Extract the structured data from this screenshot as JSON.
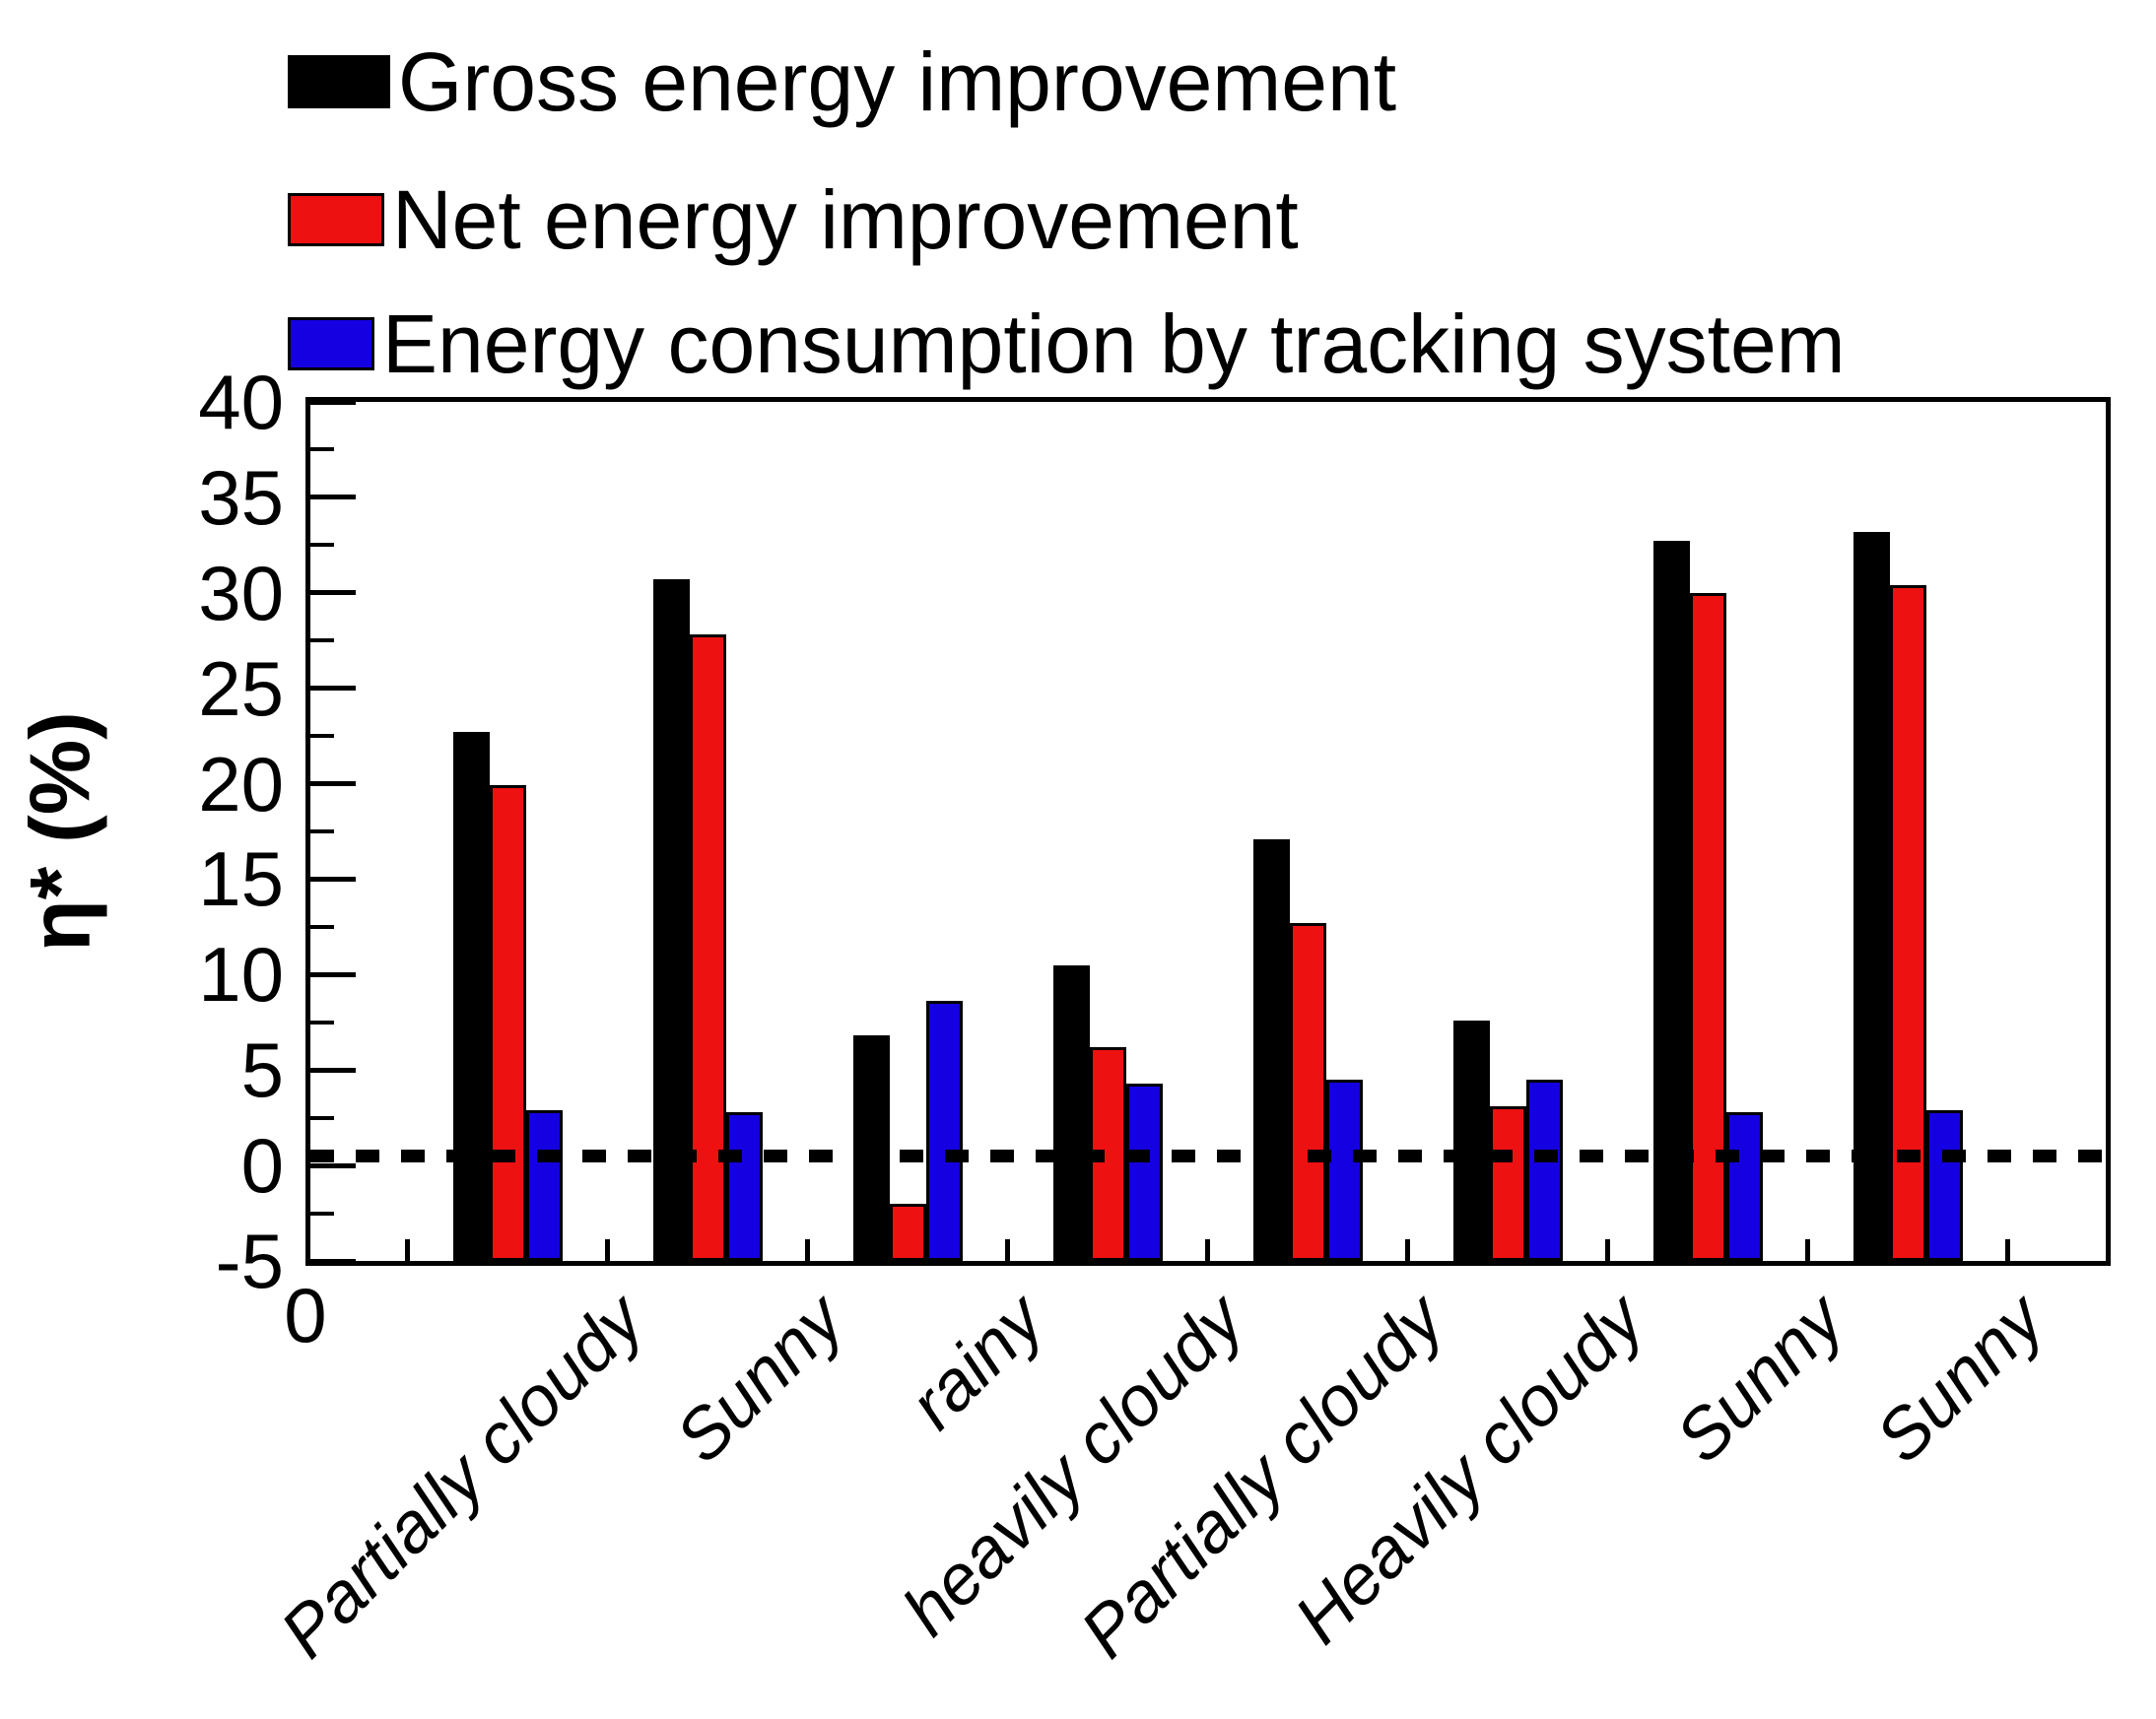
{
  "figure": {
    "background": "#ffffff"
  },
  "legend": {
    "position": "top-left"
  },
  "axes": {
    "y_title": "η* (%)",
    "y_ticks": [
      40,
      35,
      30,
      25,
      20,
      15,
      10,
      5,
      0,
      -5
    ],
    "origin_label": "0"
  },
  "chart_data": {
    "type": "bar",
    "title": "",
    "xlabel": "",
    "ylabel": "η* (%)",
    "ylim": [
      -5,
      40
    ],
    "y_major_step": 5,
    "y_minor_step": 2.5,
    "grid": false,
    "legend_position": "top-left",
    "bar_baseline": -5,
    "reference_line_y": 0.5,
    "reference_line_style": "dotted",
    "categories": [
      "Partially cloudy",
      "Sunny",
      "rainy",
      "heavily cloudy",
      "Partially cloudy",
      "Heavily cloudy",
      "Sunny",
      "Sunny"
    ],
    "series": [
      {
        "name": "Gross energy improvement",
        "key": "gross",
        "color": "#000000",
        "values": [
          22.7,
          30.7,
          6.8,
          10.5,
          17.1,
          7.6,
          32.7,
          33.2
        ]
      },
      {
        "name": "Net energy improvement",
        "key": "net",
        "color": "#ee1111",
        "values": [
          19.9,
          27.8,
          -2.0,
          6.2,
          12.7,
          3.1,
          30.0,
          30.4
        ]
      },
      {
        "name": "Energy consumption by tracking system",
        "key": "tracking",
        "color": "#1400e0",
        "values": [
          2.9,
          2.8,
          8.6,
          4.3,
          4.5,
          4.5,
          2.8,
          2.9
        ]
      }
    ]
  }
}
